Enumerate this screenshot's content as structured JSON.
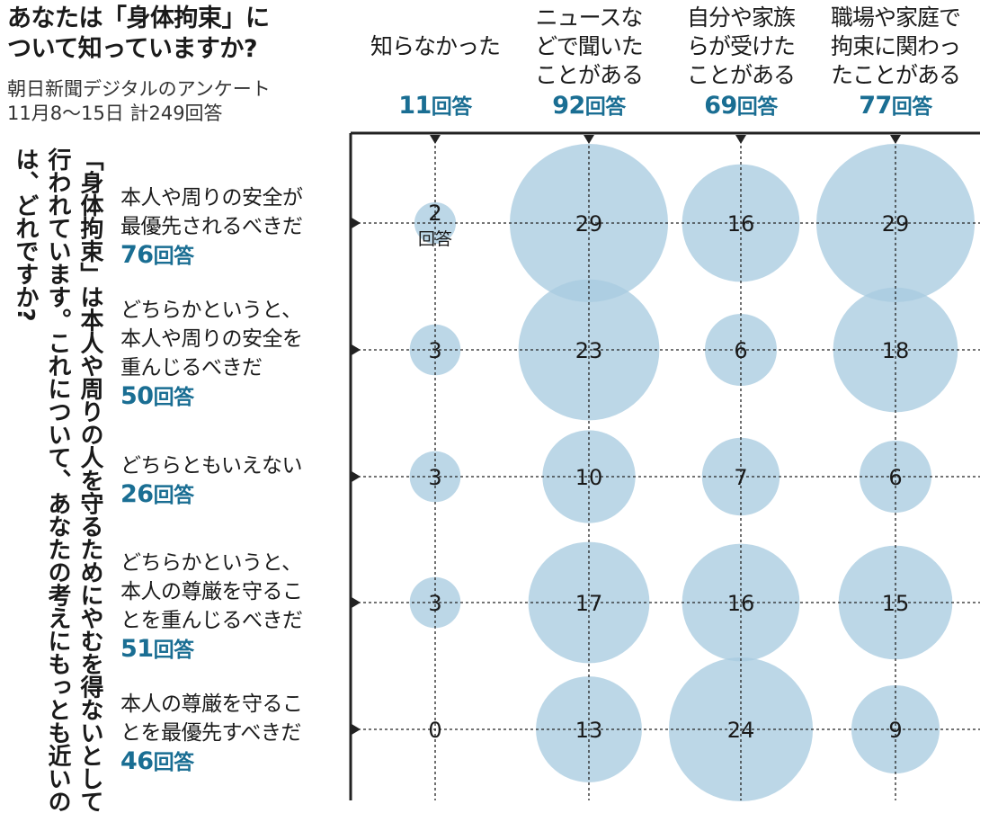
{
  "title_lines": [
    "あなたは「身体拘束」に",
    "ついて知っていますか?"
  ],
  "source_lines": [
    "朝日新聞デジタルのアンケート",
    "11月8〜15日 計249回答"
  ],
  "vertical_question": "「身体拘束」は本人や周りの人を守るためにやむを得ないとして行われています。これについて、あなたの考えにもっとも近いのは、どれですか?",
  "unit_label": "回答",
  "colors": {
    "bubble": "#a9cce0",
    "accent": "#1a6e93",
    "text": "#1a1a1a",
    "grid": "#222222"
  },
  "chart_data": {
    "type": "bubble",
    "columns": [
      {
        "label_lines": [
          "知らなかった"
        ],
        "count": "11"
      },
      {
        "label_lines": [
          "ニュースな",
          "どで聞いた",
          "ことがある"
        ],
        "count": "92"
      },
      {
        "label_lines": [
          "自分や家族",
          "らが受けた",
          "ことがある"
        ],
        "count": "69"
      },
      {
        "label_lines": [
          "職場や家庭で",
          "拘束に関わっ",
          "たことがある"
        ],
        "count": "77"
      }
    ],
    "rows": [
      {
        "label_lines": [
          "本人や周りの安全が",
          "最優先されるべきだ"
        ],
        "count": "76",
        "values": [
          2,
          29,
          16,
          29
        ]
      },
      {
        "label_lines": [
          "どちらかというと、",
          "本人や周りの安全を",
          "重んじるべきだ"
        ],
        "count": "50",
        "values": [
          3,
          23,
          6,
          18
        ]
      },
      {
        "label_lines": [
          "どちらともいえない"
        ],
        "count": "26",
        "values": [
          3,
          10,
          7,
          6
        ]
      },
      {
        "label_lines": [
          "どちらかというと、",
          "本人の尊厳を守るこ",
          "とを重んじるべきだ"
        ],
        "count": "51",
        "values": [
          3,
          17,
          16,
          15
        ]
      },
      {
        "label_lines": [
          "本人の尊厳を守るこ",
          "とを最優先すべきだ"
        ],
        "count": "46",
        "values": [
          0,
          13,
          24,
          9
        ]
      }
    ],
    "first_cell_unit_note": "回答",
    "total": "249"
  }
}
